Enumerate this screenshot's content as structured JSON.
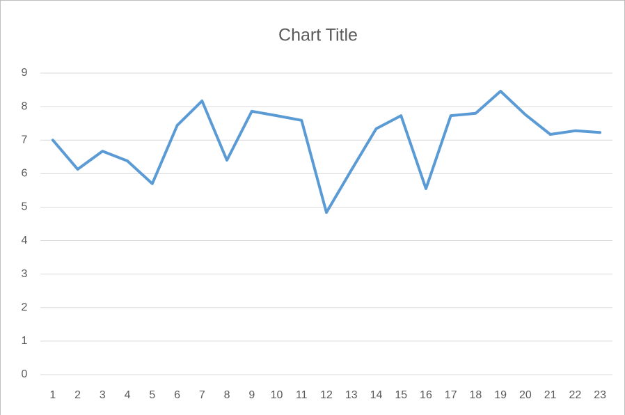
{
  "chart_data": {
    "type": "line",
    "title": "Chart Title",
    "categories": [
      "1",
      "2",
      "3",
      "4",
      "5",
      "6",
      "7",
      "8",
      "9",
      "10",
      "11",
      "12",
      "13",
      "14",
      "15",
      "16",
      "17",
      "18",
      "19",
      "20",
      "21",
      "22",
      "23"
    ],
    "values": [
      7.0,
      6.13,
      6.67,
      6.38,
      5.7,
      7.44,
      8.17,
      6.4,
      7.86,
      7.73,
      7.59,
      4.84,
      6.1,
      7.34,
      7.73,
      5.55,
      7.73,
      7.8,
      8.46,
      7.76,
      7.17,
      7.28,
      7.23
    ],
    "color": "#5b9bd5",
    "ylim": [
      0,
      9
    ],
    "yticks": [
      0,
      1,
      2,
      3,
      4,
      5,
      6,
      7,
      8,
      9
    ],
    "grid": true
  }
}
